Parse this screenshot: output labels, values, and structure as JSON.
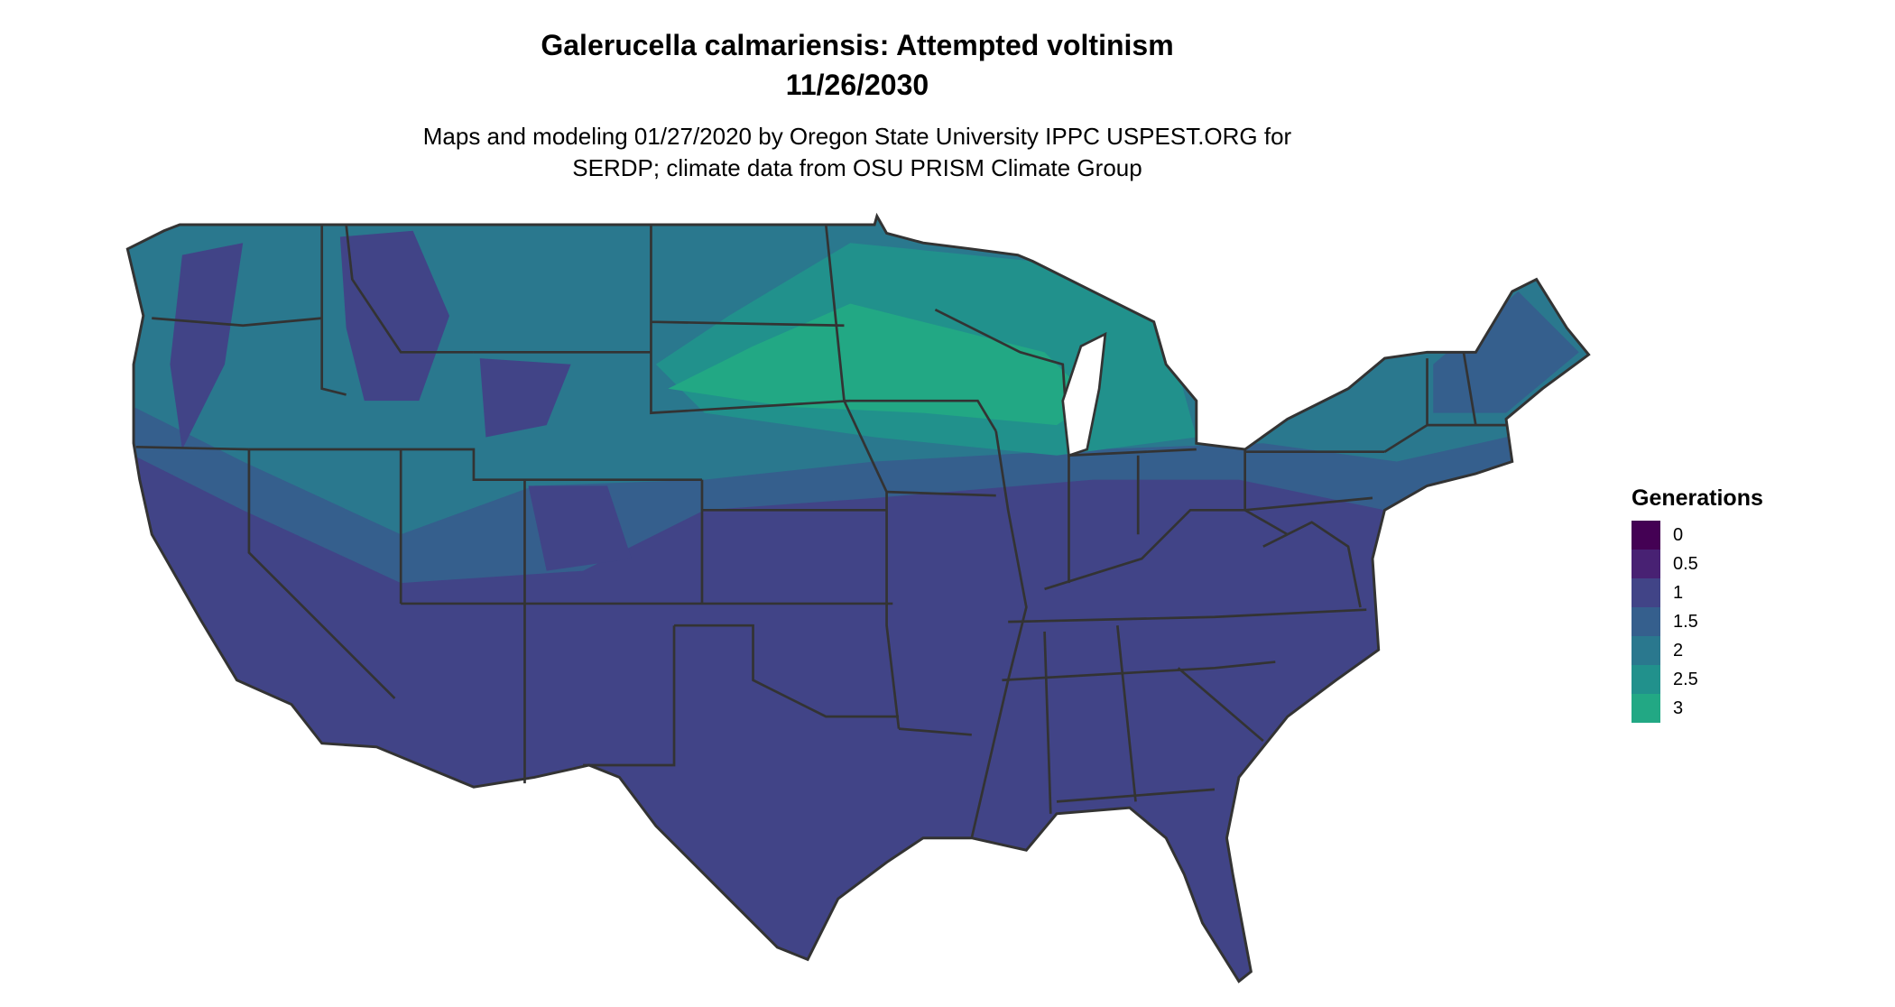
{
  "title": "Galerucella calmariensis: Attempted voltinism",
  "date": "11/26/2030",
  "subtitle_line1": "Maps and modeling 01/27/2020 by Oregon State University IPPC USPEST.ORG for",
  "subtitle_line2": "SERDP; climate data from OSU PRISM Climate Group",
  "legend": {
    "title": "Generations",
    "items": [
      {
        "label": "0",
        "color": "#440154"
      },
      {
        "label": "0.5",
        "color": "#482173"
      },
      {
        "label": "1",
        "color": "#414487"
      },
      {
        "label": "1.5",
        "color": "#355F8D"
      },
      {
        "label": "2",
        "color": "#2A788E"
      },
      {
        "label": "2.5",
        "color": "#21918C"
      },
      {
        "label": "3",
        "color": "#22A884"
      }
    ]
  },
  "map": {
    "region": "Contiguous United States",
    "border_color": "#333333",
    "dominant_south_value": "1",
    "northern_values": [
      "1.5",
      "2",
      "2.5",
      "3"
    ]
  }
}
